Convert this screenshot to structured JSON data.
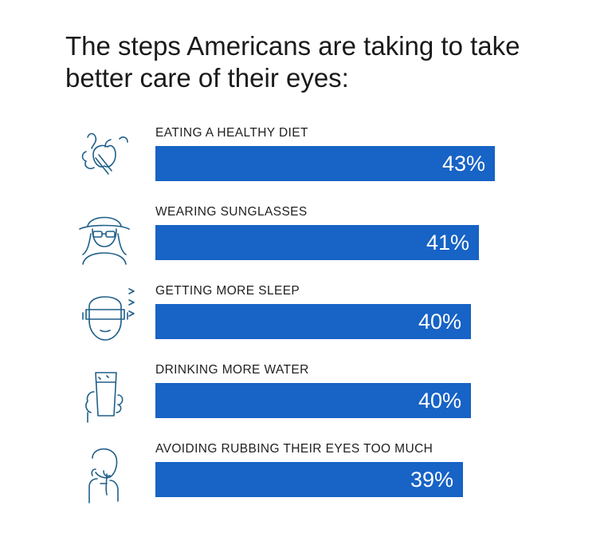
{
  "title": "The steps Americans are taking to take better care of their eyes:",
  "colors": {
    "bar": "#1763c6",
    "bar_text": "#ffffff",
    "icon": "#1f5f8a"
  },
  "chart_data": {
    "type": "bar",
    "orientation": "horizontal",
    "categories": [
      "EATING A HEALTHY DIET",
      "WEARING SUNGLASSES",
      "GETTING MORE SLEEP",
      "DRINKING MORE WATER",
      "AVOIDING RUBBING THEIR EYES TOO MUCH"
    ],
    "values": [
      43,
      41,
      40,
      40,
      39
    ],
    "value_labels": [
      "43%",
      "41%",
      "40%",
      "40%",
      "39%"
    ],
    "icons": [
      "healthy-food-icon",
      "sunglasses-person-icon",
      "sleep-mask-icon",
      "water-glass-icon",
      "rubbing-eye-icon"
    ],
    "title": "The steps Americans are taking to take better care of their eyes:",
    "xlabel": "",
    "ylabel": "",
    "xlim": [
      0,
      43
    ],
    "grid": false,
    "legend": "none"
  }
}
